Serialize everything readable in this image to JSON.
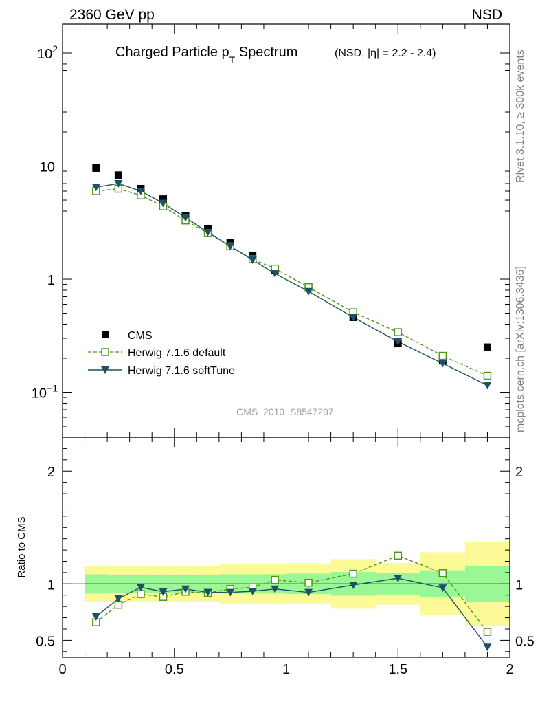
{
  "header": {
    "left": "2360 GeV pp",
    "right": "NSD"
  },
  "title": {
    "main": "Charged Particle p",
    "subscript": "T",
    "suffix": " Spectrum",
    "qualifier": "(NSD, |η| = 2.2 - 2.4)"
  },
  "side_labels": {
    "top_right": "Rivet 3.1.10, ≥ 300k events",
    "bottom_right": "mcplots.cern.ch [arXiv:1306.3436]"
  },
  "analysis_tag": "CMS_2010_S8547297",
  "ratio_ylabel": "Ratio to CMS",
  "legend": [
    {
      "label": "CMS",
      "marker": "filled-square",
      "color": "#000000"
    },
    {
      "label": "Herwig 7.1.6 default",
      "marker": "open-square",
      "line": "dashed",
      "color": "#4d9a1a"
    },
    {
      "label": "Herwig 7.1.6 softTune",
      "marker": "filled-triangle-down",
      "line": "solid",
      "color": "#1e5165"
    }
  ],
  "chart_data": [
    {
      "type": "scatter",
      "panel": "main",
      "yscale": "log",
      "xlim": [
        0,
        2
      ],
      "ylim": [
        0.04,
        180
      ],
      "y_ticks": [
        {
          "value": 0.1,
          "base": "10",
          "exp": "−1"
        },
        {
          "value": 1,
          "base": "1",
          "exp": ""
        },
        {
          "value": 10,
          "base": "10",
          "exp": ""
        },
        {
          "value": 100,
          "base": "10",
          "exp": "2"
        }
      ],
      "x": [
        0.15,
        0.25,
        0.35,
        0.45,
        0.55,
        0.65,
        0.75,
        0.85,
        0.95,
        1.1,
        1.3,
        1.5,
        1.7,
        1.9
      ],
      "series": [
        {
          "name": "CMS",
          "values": [
            9.6,
            8.3,
            6.3,
            5.1,
            3.65,
            2.8,
            2.1,
            1.6,
            1.2,
            0.85,
            0.46,
            0.27,
            0.19,
            0.25
          ]
        },
        {
          "name": "Herwig 7.1.6 default",
          "values": [
            6.0,
            6.3,
            5.5,
            4.4,
            3.3,
            2.55,
            1.95,
            1.5,
            1.24,
            0.85,
            0.51,
            0.34,
            0.21,
            0.14
          ]
        },
        {
          "name": "Herwig 7.1.6 softTune",
          "values": [
            6.5,
            7.0,
            6.0,
            4.7,
            3.5,
            2.6,
            1.95,
            1.48,
            1.12,
            0.78,
            0.46,
            0.28,
            0.18,
            0.115
          ]
        }
      ]
    },
    {
      "type": "line",
      "panel": "ratio",
      "ylabel": "Ratio to CMS",
      "xlim": [
        0,
        2
      ],
      "ylim": [
        0.35,
        2.3
      ],
      "x_ticks": [
        "0",
        "0.5",
        "1",
        "1.5",
        "2"
      ],
      "y_ticks": [
        "0.5",
        "1",
        "2"
      ],
      "reference_line": 1,
      "bands": [
        {
          "xmin": 0.1,
          "xmax": 0.2,
          "inner": [
            0.915,
            1.085
          ],
          "outer": [
            0.84,
            1.16
          ]
        },
        {
          "xmin": 0.2,
          "xmax": 0.3,
          "inner": [
            0.92,
            1.08
          ],
          "outer": [
            0.845,
            1.155
          ]
        },
        {
          "xmin": 0.3,
          "xmax": 0.4,
          "inner": [
            0.92,
            1.08
          ],
          "outer": [
            0.845,
            1.155
          ]
        },
        {
          "xmin": 0.4,
          "xmax": 0.5,
          "inner": [
            0.92,
            1.08
          ],
          "outer": [
            0.845,
            1.155
          ]
        },
        {
          "xmin": 0.5,
          "xmax": 0.6,
          "inner": [
            0.92,
            1.08
          ],
          "outer": [
            0.84,
            1.16
          ]
        },
        {
          "xmin": 0.6,
          "xmax": 0.7,
          "inner": [
            0.92,
            1.08
          ],
          "outer": [
            0.84,
            1.16
          ]
        },
        {
          "xmin": 0.7,
          "xmax": 0.8,
          "inner": [
            0.915,
            1.085
          ],
          "outer": [
            0.825,
            1.175
          ]
        },
        {
          "xmin": 0.8,
          "xmax": 0.9,
          "inner": [
            0.915,
            1.085
          ],
          "outer": [
            0.82,
            1.18
          ]
        },
        {
          "xmin": 0.9,
          "xmax": 1.0,
          "inner": [
            0.915,
            1.085
          ],
          "outer": [
            0.82,
            1.18
          ]
        },
        {
          "xmin": 1.0,
          "xmax": 1.2,
          "inner": [
            0.91,
            1.09
          ],
          "outer": [
            0.82,
            1.18
          ]
        },
        {
          "xmin": 1.2,
          "xmax": 1.4,
          "inner": [
            0.895,
            1.105
          ],
          "outer": [
            0.78,
            1.22
          ]
        },
        {
          "xmin": 1.4,
          "xmax": 1.6,
          "inner": [
            0.905,
            1.095
          ],
          "outer": [
            0.815,
            1.185
          ]
        },
        {
          "xmin": 1.6,
          "xmax": 1.8,
          "inner": [
            0.88,
            1.12
          ],
          "outer": [
            0.72,
            1.28
          ]
        },
        {
          "xmin": 1.8,
          "xmax": 2.0,
          "inner": [
            0.84,
            1.16
          ],
          "outer": [
            0.63,
            1.37
          ]
        }
      ],
      "x": [
        0.15,
        0.25,
        0.35,
        0.45,
        0.55,
        0.65,
        0.75,
        0.85,
        0.95,
        1.1,
        1.3,
        1.5,
        1.7,
        1.9
      ],
      "series": [
        {
          "name": "Herwig 7.1.6 default",
          "values": [
            0.66,
            0.815,
            0.91,
            0.885,
            0.93,
            0.92,
            0.955,
            0.97,
            1.035,
            1.01,
            1.09,
            1.25,
            1.095,
            0.575
          ]
        },
        {
          "name": "Herwig 7.1.6 softTune",
          "values": [
            0.71,
            0.87,
            0.97,
            0.93,
            0.955,
            0.925,
            0.925,
            0.935,
            0.955,
            0.925,
            0.99,
            1.05,
            0.965,
            0.44
          ]
        }
      ]
    }
  ],
  "colors": {
    "band_outer": "#fcfa96",
    "band_inner": "#99f796",
    "default": "#4d9a1a",
    "softtune": "#1e5165",
    "side_text": "#7f7f7f"
  }
}
